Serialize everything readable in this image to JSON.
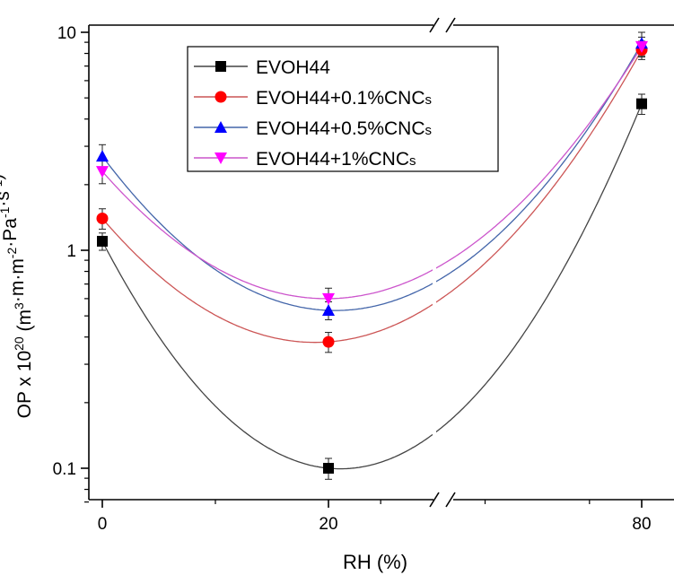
{
  "chart_data": {
    "type": "line",
    "xlabel": "RH (%)",
    "ylabel": "OP x 10",
    "ylabel_exp": "20",
    "ylabel_units": "(m·m·m·Pa·s)",
    "ylabel_unit_parts": [
      "m",
      "3",
      "·m·m",
      "-2",
      "·Pa",
      "-1",
      "·s",
      "-1"
    ],
    "yscale": "log",
    "ylim": [
      0.07,
      10
    ],
    "y_ticks": [
      {
        "value": 0.1,
        "label": "0.1"
      },
      {
        "value": 1,
        "label": "1"
      },
      {
        "value": 10,
        "label": "10"
      }
    ],
    "x_ticks": [
      {
        "value": 0,
        "label": "0"
      },
      {
        "value": 20,
        "label": "20"
      },
      {
        "value": 80,
        "label": "80"
      }
    ],
    "x_axis_break": true,
    "legend_position": "top-left",
    "x": [
      0,
      20,
      80
    ],
    "series": [
      {
        "name": "EVOH44",
        "sub": "",
        "marker": "square",
        "color": "#000000",
        "line_color": "#444444",
        "values": [
          1.1,
          0.1,
          4.7
        ],
        "err": [
          0.1,
          0.011,
          0.5
        ]
      },
      {
        "name": "EVOH44+0.1%CNC",
        "sub": "s",
        "marker": "circle",
        "color": "#ff0000",
        "line_color": "#cc5555",
        "values": [
          1.4,
          0.38,
          8.3
        ],
        "err": [
          0.15,
          0.04,
          0.8
        ]
      },
      {
        "name": "EVOH44+0.5%CNC",
        "sub": "s",
        "marker": "triangle-up",
        "color": "#0000ff",
        "line_color": "#4466aa",
        "values": [
          2.7,
          0.53,
          8.9
        ],
        "err": [
          0.35,
          0.05,
          1.1
        ]
      },
      {
        "name": "EVOH44+1%CNC",
        "sub": "s",
        "marker": "triangle-down",
        "color": "#ff00ff",
        "line_color": "#cc55cc",
        "values": [
          2.3,
          0.6,
          8.6
        ],
        "err": [
          0.28,
          0.07,
          0.9
        ]
      }
    ]
  }
}
